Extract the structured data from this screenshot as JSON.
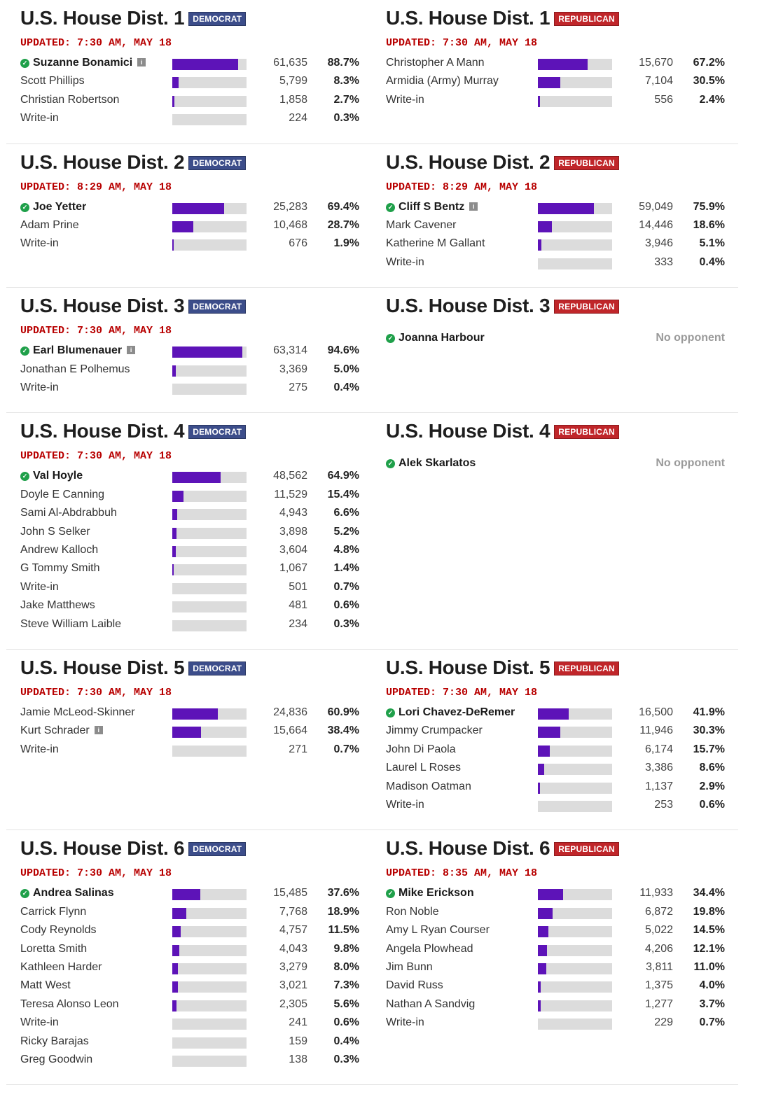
{
  "rows": [
    {
      "races": [
        {
          "district": "U.S. House Dist. 1",
          "party": "DEMOCRAT",
          "party_class": "dem",
          "updated": "UPDATED: 7:30 AM, MAY 18",
          "candidates": [
            {
              "name": "Suzanne Bonamici",
              "votes": "61,635",
              "pct": "88.7%",
              "share": 0.887,
              "winner": true,
              "incumbent": true
            },
            {
              "name": "Scott Phillips",
              "votes": "5,799",
              "pct": "8.3%",
              "share": 0.083
            },
            {
              "name": "Christian Robertson",
              "votes": "1,858",
              "pct": "2.7%",
              "share": 0.027
            },
            {
              "name": "Write-in",
              "votes": "224",
              "pct": "0.3%",
              "share": 0.003
            }
          ]
        },
        {
          "district": "U.S. House Dist. 1",
          "party": "REPUBLICAN",
          "party_class": "rep",
          "updated": "UPDATED: 7:30 AM, MAY 18",
          "candidates": [
            {
              "name": "Christopher A Mann",
              "votes": "15,670",
              "pct": "67.2%",
              "share": 0.672
            },
            {
              "name": "Armidia (Army) Murray",
              "votes": "7,104",
              "pct": "30.5%",
              "share": 0.305
            },
            {
              "name": "Write-in",
              "votes": "556",
              "pct": "2.4%",
              "share": 0.024
            }
          ]
        }
      ]
    },
    {
      "races": [
        {
          "district": "U.S. House Dist. 2",
          "party": "DEMOCRAT",
          "party_class": "dem",
          "updated": "UPDATED: 8:29 AM, MAY 18",
          "candidates": [
            {
              "name": "Joe Yetter",
              "votes": "25,283",
              "pct": "69.4%",
              "share": 0.694,
              "winner": true
            },
            {
              "name": "Adam Prine",
              "votes": "10,468",
              "pct": "28.7%",
              "share": 0.287
            },
            {
              "name": "Write-in",
              "votes": "676",
              "pct": "1.9%",
              "share": 0.019
            }
          ]
        },
        {
          "district": "U.S. House Dist. 2",
          "party": "REPUBLICAN",
          "party_class": "rep",
          "updated": "UPDATED: 8:29 AM, MAY 18",
          "candidates": [
            {
              "name": "Cliff S Bentz",
              "votes": "59,049",
              "pct": "75.9%",
              "share": 0.759,
              "winner": true,
              "incumbent": true
            },
            {
              "name": "Mark Cavener",
              "votes": "14,446",
              "pct": "18.6%",
              "share": 0.186
            },
            {
              "name": "Katherine M Gallant",
              "votes": "3,946",
              "pct": "5.1%",
              "share": 0.051
            },
            {
              "name": "Write-in",
              "votes": "333",
              "pct": "0.4%",
              "share": 0.004
            }
          ]
        }
      ]
    },
    {
      "races": [
        {
          "district": "U.S. House Dist. 3",
          "party": "DEMOCRAT",
          "party_class": "dem",
          "updated": "UPDATED: 7:30 AM, MAY 18",
          "candidates": [
            {
              "name": "Earl Blumenauer",
              "votes": "63,314",
              "pct": "94.6%",
              "share": 0.946,
              "winner": true,
              "incumbent": true
            },
            {
              "name": "Jonathan E Polhemus",
              "votes": "3,369",
              "pct": "5.0%",
              "share": 0.05
            },
            {
              "name": "Write-in",
              "votes": "275",
              "pct": "0.4%",
              "share": 0.004
            }
          ]
        },
        {
          "district": "U.S. House Dist. 3",
          "party": "REPUBLICAN",
          "party_class": "rep",
          "updated": "",
          "candidates": [
            {
              "name": "Joanna Harbour",
              "winner": true,
              "no_opponent": "No opponent"
            }
          ]
        }
      ]
    },
    {
      "races": [
        {
          "district": "U.S. House Dist. 4",
          "party": "DEMOCRAT",
          "party_class": "dem",
          "updated": "UPDATED: 7:30 AM, MAY 18",
          "candidates": [
            {
              "name": "Val Hoyle",
              "votes": "48,562",
              "pct": "64.9%",
              "share": 0.649,
              "winner": true
            },
            {
              "name": "Doyle E Canning",
              "votes": "11,529",
              "pct": "15.4%",
              "share": 0.154
            },
            {
              "name": "Sami Al-Abdrabbuh",
              "votes": "4,943",
              "pct": "6.6%",
              "share": 0.066
            },
            {
              "name": "John S Selker",
              "votes": "3,898",
              "pct": "5.2%",
              "share": 0.052
            },
            {
              "name": "Andrew Kalloch",
              "votes": "3,604",
              "pct": "4.8%",
              "share": 0.048
            },
            {
              "name": "G Tommy Smith",
              "votes": "1,067",
              "pct": "1.4%",
              "share": 0.014
            },
            {
              "name": "Write-in",
              "votes": "501",
              "pct": "0.7%",
              "share": 0.007
            },
            {
              "name": "Jake Matthews",
              "votes": "481",
              "pct": "0.6%",
              "share": 0.006
            },
            {
              "name": "Steve William Laible",
              "votes": "234",
              "pct": "0.3%",
              "share": 0.003
            }
          ]
        },
        {
          "district": "U.S. House Dist. 4",
          "party": "REPUBLICAN",
          "party_class": "rep",
          "updated": "",
          "candidates": [
            {
              "name": "Alek Skarlatos",
              "winner": true,
              "no_opponent": "No opponent"
            }
          ]
        }
      ]
    },
    {
      "races": [
        {
          "district": "U.S. House Dist. 5",
          "party": "DEMOCRAT",
          "party_class": "dem",
          "updated": "UPDATED: 7:30 AM, MAY 18",
          "candidates": [
            {
              "name": "Jamie McLeod-Skinner",
              "votes": "24,836",
              "pct": "60.9%",
              "share": 0.609
            },
            {
              "name": "Kurt Schrader",
              "votes": "15,664",
              "pct": "38.4%",
              "share": 0.384,
              "incumbent": true
            },
            {
              "name": "Write-in",
              "votes": "271",
              "pct": "0.7%",
              "share": 0.007
            }
          ]
        },
        {
          "district": "U.S. House Dist. 5",
          "party": "REPUBLICAN",
          "party_class": "rep",
          "updated": "UPDATED: 7:30 AM, MAY 18",
          "candidates": [
            {
              "name": "Lori Chavez-DeRemer",
              "votes": "16,500",
              "pct": "41.9%",
              "share": 0.419,
              "winner": true
            },
            {
              "name": "Jimmy Crumpacker",
              "votes": "11,946",
              "pct": "30.3%",
              "share": 0.303
            },
            {
              "name": "John Di Paola",
              "votes": "6,174",
              "pct": "15.7%",
              "share": 0.157
            },
            {
              "name": "Laurel L Roses",
              "votes": "3,386",
              "pct": "8.6%",
              "share": 0.086
            },
            {
              "name": "Madison Oatman",
              "votes": "1,137",
              "pct": "2.9%",
              "share": 0.029
            },
            {
              "name": "Write-in",
              "votes": "253",
              "pct": "0.6%",
              "share": 0.006
            }
          ]
        }
      ]
    },
    {
      "races": [
        {
          "district": "U.S. House Dist. 6",
          "party": "DEMOCRAT",
          "party_class": "dem",
          "updated": "UPDATED: 7:30 AM, MAY 18",
          "candidates": [
            {
              "name": "Andrea Salinas",
              "votes": "15,485",
              "pct": "37.6%",
              "share": 0.376,
              "winner": true
            },
            {
              "name": "Carrick Flynn",
              "votes": "7,768",
              "pct": "18.9%",
              "share": 0.189
            },
            {
              "name": "Cody Reynolds",
              "votes": "4,757",
              "pct": "11.5%",
              "share": 0.115
            },
            {
              "name": "Loretta Smith",
              "votes": "4,043",
              "pct": "9.8%",
              "share": 0.098
            },
            {
              "name": "Kathleen Harder",
              "votes": "3,279",
              "pct": "8.0%",
              "share": 0.08
            },
            {
              "name": "Matt West",
              "votes": "3,021",
              "pct": "7.3%",
              "share": 0.073
            },
            {
              "name": "Teresa Alonso Leon",
              "votes": "2,305",
              "pct": "5.6%",
              "share": 0.056
            },
            {
              "name": "Write-in",
              "votes": "241",
              "pct": "0.6%",
              "share": 0.006
            },
            {
              "name": "Ricky Barajas",
              "votes": "159",
              "pct": "0.4%",
              "share": 0.004
            },
            {
              "name": "Greg Goodwin",
              "votes": "138",
              "pct": "0.3%",
              "share": 0.003
            }
          ]
        },
        {
          "district": "U.S. House Dist. 6",
          "party": "REPUBLICAN",
          "party_class": "rep",
          "updated": "UPDATED: 8:35 AM, MAY 18",
          "candidates": [
            {
              "name": "Mike Erickson",
              "votes": "11,933",
              "pct": "34.4%",
              "share": 0.344,
              "winner": true
            },
            {
              "name": "Ron Noble",
              "votes": "6,872",
              "pct": "19.8%",
              "share": 0.198
            },
            {
              "name": "Amy L Ryan Courser",
              "votes": "5,022",
              "pct": "14.5%",
              "share": 0.145
            },
            {
              "name": "Angela Plowhead",
              "votes": "4,206",
              "pct": "12.1%",
              "share": 0.121
            },
            {
              "name": "Jim Bunn",
              "votes": "3,811",
              "pct": "11.0%",
              "share": 0.11
            },
            {
              "name": "David Russ",
              "votes": "1,375",
              "pct": "4.0%",
              "share": 0.04
            },
            {
              "name": "Nathan A Sandvig",
              "votes": "1,277",
              "pct": "3.7%",
              "share": 0.037
            },
            {
              "name": "Write-in",
              "votes": "229",
              "pct": "0.7%",
              "share": 0.007
            }
          ]
        }
      ]
    }
  ],
  "icons": {
    "winner": "check-circle-icon",
    "incumbent": "incumbent-i-icon"
  },
  "colors": {
    "democrat": "#3c4d8a",
    "republican": "#c0262a",
    "bar_fill": "#5d13b8",
    "bar_track": "#dcdcdc",
    "updated": "#b80000",
    "winner_check": "#1fa04a"
  }
}
